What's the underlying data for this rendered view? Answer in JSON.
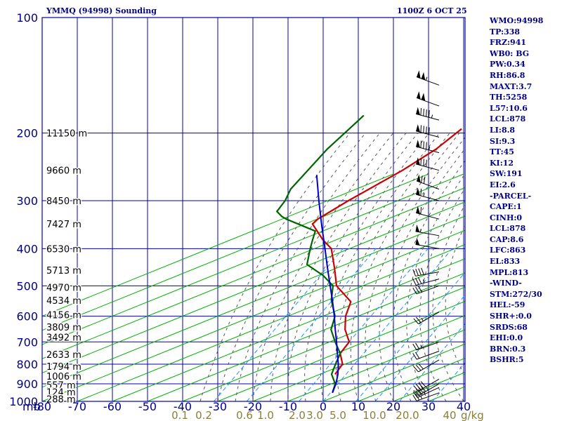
{
  "header": {
    "title": "YMMQ (94998) Sounding",
    "datetime": "1100Z  6 OCT 25"
  },
  "indices": [
    "WMO:94998",
    "TP:338",
    "FRZ:941",
    "WB0: BG",
    "PW:0.34",
    "RH:86.8",
    "MAXT:3.7",
    "TH:5258",
    "L57:10.6",
    "LCL:878",
    "LI:8.8",
    "SI:9.3",
    "TT:45",
    "KI:12",
    "SW:191",
    "EI:2.6",
    "-PARCEL-",
    "CAPE:1",
    "CINH:0",
    "LCL:878",
    "CAP:8.6",
    "LFC:863",
    "EL:833",
    "MPL:813",
    "-WIND-",
    "STM:272/30",
    "HEL:-59",
    "SHR+:0.0",
    "SRDS:68",
    "EHI:0.0",
    "BRN:0.3",
    "BSHR:5"
  ],
  "colors": {
    "frame": "#0000aa",
    "dry_adiabat": "#00b000",
    "moist_adiabat": "#555555",
    "mixing_ratio": "#1e90ff",
    "temperature": "#cc0000",
    "dewpoint": "#006400",
    "parcel": "#0000cc",
    "labels": "#00008b",
    "mixing_labels": "#8b7d3a"
  },
  "chart_data": {
    "type": "line",
    "title": "YMMQ (94998) Sounding",
    "xlabel": "",
    "ylabel": "",
    "pressure_axis_label": "mb",
    "mixing_axis_label": "g/kg",
    "x_ticks": [
      -80,
      -70,
      -60,
      -50,
      -40,
      -30,
      -20,
      -10,
      0,
      10,
      20,
      30,
      40
    ],
    "x_tick_labels": [
      "-80",
      "-70",
      "-60",
      "-50",
      "-40",
      "-30",
      "-20",
      "-10",
      "0",
      "10",
      "20",
      "30",
      "40"
    ],
    "y_ticks": [
      100,
      200,
      300,
      400,
      500,
      600,
      700,
      800,
      900,
      1000
    ],
    "y_tick_labels": [
      "100",
      "200",
      "300",
      "400",
      "500",
      "600",
      "700",
      "800",
      "900",
      "1000"
    ],
    "xlim": [
      -80,
      40
    ],
    "ylim": [
      1000,
      100
    ],
    "scale": "skew-T log-p",
    "grid": true,
    "height_labels": [
      {
        "p": 200,
        "text": "11150 m"
      },
      {
        "p": 250,
        "text": "9660 m"
      },
      {
        "p": 300,
        "text": "8450 m"
      },
      {
        "p": 345,
        "text": "7427 m"
      },
      {
        "p": 400,
        "text": "6530 m"
      },
      {
        "p": 455,
        "text": "5713 m"
      },
      {
        "p": 505,
        "text": "4970 m"
      },
      {
        "p": 545,
        "text": "4534 m"
      },
      {
        "p": 595,
        "text": "4156 m"
      },
      {
        "p": 640,
        "text": "3809 m"
      },
      {
        "p": 680,
        "text": "3492 m"
      },
      {
        "p": 755,
        "text": "2633 m"
      },
      {
        "p": 810,
        "text": "1794 m"
      },
      {
        "p": 860,
        "text": "1006 m"
      },
      {
        "p": 905,
        "text": "557 m"
      },
      {
        "p": 945,
        "text": "124 m"
      },
      {
        "p": 985,
        "text": "288 m"
      }
    ],
    "mixing_ratio_labels": [
      {
        "w": 0.1,
        "text": "0.1"
      },
      {
        "w": 0.2,
        "text": "0.2"
      },
      {
        "w": 0.6,
        "text": "0.6"
      },
      {
        "w": 1.0,
        "text": "1.0"
      },
      {
        "w": 2.0,
        "text": "2.0"
      },
      {
        "w": 3.0,
        "text": "3.0"
      },
      {
        "w": 5.0,
        "text": "5.0"
      },
      {
        "w": 10.0,
        "text": "10.0"
      },
      {
        "w": 20.0,
        "text": "20.0"
      },
      {
        "w": 40.0,
        "text": "40"
      }
    ],
    "series": [
      {
        "kind": "temperature",
        "points": [
          [
            195,
            -45
          ],
          [
            220,
            -46
          ],
          [
            250,
            -49
          ],
          [
            300,
            -55
          ],
          [
            335,
            -58
          ],
          [
            345,
            -58
          ],
          [
            380,
            -50
          ],
          [
            400,
            -45
          ],
          [
            450,
            -38
          ],
          [
            500,
            -32
          ],
          [
            550,
            -23
          ],
          [
            600,
            -20
          ],
          [
            650,
            -16
          ],
          [
            700,
            -11
          ],
          [
            750,
            -10
          ],
          [
            800,
            -6
          ],
          [
            850,
            -5
          ]
        ]
      },
      {
        "kind": "dewpoint",
        "points": [
          [
            180,
            -77
          ],
          [
            220,
            -77
          ],
          [
            280,
            -75
          ],
          [
            300,
            -73
          ],
          [
            320,
            -72
          ],
          [
            330,
            -69
          ],
          [
            335,
            -67
          ],
          [
            360,
            -55
          ],
          [
            380,
            -53
          ],
          [
            400,
            -51
          ],
          [
            440,
            -47
          ],
          [
            470,
            -39
          ],
          [
            500,
            -33
          ],
          [
            545,
            -29
          ],
          [
            600,
            -23
          ],
          [
            650,
            -20
          ],
          [
            700,
            -15
          ],
          [
            750,
            -10
          ],
          [
            800,
            -8
          ],
          [
            850,
            -6
          ],
          [
            900,
            -2
          ],
          [
            950,
            0
          ]
        ]
      },
      {
        "kind": "parcel",
        "points": [
          [
            950,
            0
          ],
          [
            900,
            -1.8
          ],
          [
            850,
            -4.2
          ],
          [
            800,
            -7.2
          ],
          [
            750,
            -10.8
          ],
          [
            700,
            -14.6
          ],
          [
            650,
            -18.8
          ],
          [
            600,
            -23.2
          ],
          [
            550,
            -28.2
          ],
          [
            500,
            -33.8
          ],
          [
            450,
            -40
          ],
          [
            400,
            -46.8
          ],
          [
            350,
            -54.6
          ],
          [
            300,
            -63.4
          ],
          [
            257,
            -72
          ]
        ]
      }
    ],
    "wind_barbs": [
      {
        "p": 150,
        "dir": 290,
        "speed": 105
      },
      {
        "p": 170,
        "dir": 290,
        "speed": 100
      },
      {
        "p": 185,
        "dir": 285,
        "speed": 95
      },
      {
        "p": 205,
        "dir": 285,
        "speed": 90
      },
      {
        "p": 225,
        "dir": 285,
        "speed": 85
      },
      {
        "p": 250,
        "dir": 285,
        "speed": 80
      },
      {
        "p": 280,
        "dir": 290,
        "speed": 70
      },
      {
        "p": 300,
        "dir": 285,
        "speed": 65
      },
      {
        "p": 335,
        "dir": 285,
        "speed": 60
      },
      {
        "p": 370,
        "dir": 280,
        "speed": 55
      },
      {
        "p": 400,
        "dir": 280,
        "speed": 50
      },
      {
        "p": 460,
        "dir": 260,
        "speed": 40
      },
      {
        "p": 480,
        "dir": 255,
        "speed": 35
      },
      {
        "p": 500,
        "dir": 250,
        "speed": 30
      },
      {
        "p": 585,
        "dir": 240,
        "speed": 25
      },
      {
        "p": 700,
        "dir": 250,
        "speed": 25
      },
      {
        "p": 740,
        "dir": 250,
        "speed": 20
      },
      {
        "p": 780,
        "dir": 240,
        "speed": 30
      },
      {
        "p": 875,
        "dir": 240,
        "speed": 40
      },
      {
        "p": 900,
        "dir": 240,
        "speed": 45
      },
      {
        "p": 920,
        "dir": 245,
        "speed": 35
      },
      {
        "p": 950,
        "dir": 250,
        "speed": 25
      }
    ]
  }
}
